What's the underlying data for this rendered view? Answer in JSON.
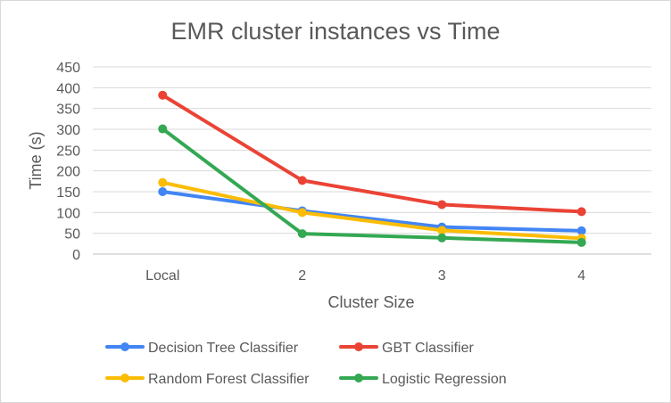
{
  "chart_data": {
    "type": "line",
    "title": "EMR cluster instances vs Time",
    "xlabel": "Cluster Size",
    "ylabel": "Time (s)",
    "categories": [
      "Local",
      "2",
      "3",
      "4"
    ],
    "ylim": [
      0,
      450
    ],
    "yticks": [
      0,
      50,
      100,
      150,
      200,
      250,
      300,
      350,
      400,
      450
    ],
    "grid": true,
    "legend_position": "bottom",
    "series": [
      {
        "name": "Decision Tree Classifier",
        "color": "#4285f4",
        "values": [
          150,
          104,
          65,
          56
        ]
      },
      {
        "name": "GBT Classifier",
        "color": "#ea4335",
        "values": [
          382,
          177,
          119,
          102
        ]
      },
      {
        "name": "Random Forest Classifier",
        "color": "#fbbc04",
        "values": [
          172,
          100,
          57,
          38
        ]
      },
      {
        "name": "Logistic Regression",
        "color": "#34a853",
        "values": [
          301,
          49,
          39,
          28
        ]
      }
    ]
  }
}
